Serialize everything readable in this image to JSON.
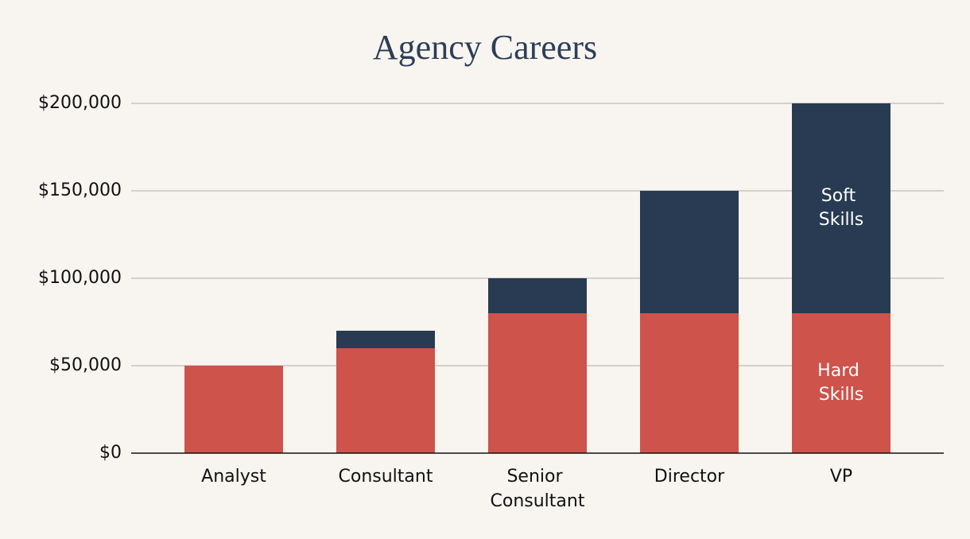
{
  "chart_data": {
    "type": "stacked_bar",
    "title": "Agency Careers",
    "categories": [
      "Analyst",
      "Consultant",
      "Senior Consultant",
      "Director",
      "VP"
    ],
    "series": [
      {
        "name": "Hard Skills",
        "color": "#cd534b",
        "values": [
          50000,
          60000,
          80000,
          80000,
          80000
        ]
      },
      {
        "name": "Soft Skills",
        "color": "#283b52",
        "values": [
          0,
          10000,
          20000,
          70000,
          120000
        ]
      }
    ],
    "ylim": [
      0,
      200000
    ],
    "yticks": [
      {
        "value": 0,
        "label": "$0"
      },
      {
        "value": 50000,
        "label": "$50,000"
      },
      {
        "value": 100000,
        "label": "$100,000"
      },
      {
        "value": 150000,
        "label": "$150,000"
      },
      {
        "value": 200000,
        "label": "$200,000"
      }
    ],
    "grid": true
  }
}
